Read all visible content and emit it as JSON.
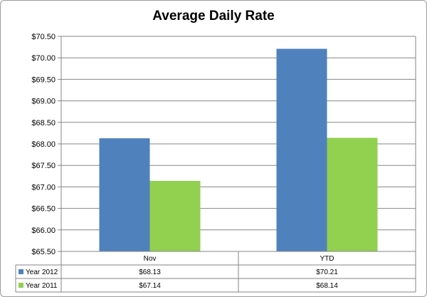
{
  "chart_data": {
    "type": "bar",
    "title": "Average Daily Rate",
    "categories": [
      "Nov",
      "YTD"
    ],
    "series": [
      {
        "name": "Year 2012",
        "color": "#4f81bd",
        "values": [
          68.13,
          70.21
        ],
        "labels": [
          "$68.13",
          "$70.21"
        ]
      },
      {
        "name": "Year 2011",
        "color": "#92d050",
        "values": [
          67.14,
          68.14
        ],
        "labels": [
          "$67.14",
          "$68.14"
        ]
      }
    ],
    "ylim": [
      65.5,
      70.5
    ],
    "yticks": [
      {
        "value": 70.5,
        "label": "$70.50"
      },
      {
        "value": 70.0,
        "label": "$70.00"
      },
      {
        "value": 69.5,
        "label": "$69.50"
      },
      {
        "value": 69.0,
        "label": "$69.00"
      },
      {
        "value": 68.5,
        "label": "$68.50"
      },
      {
        "value": 68.0,
        "label": "$68.00"
      },
      {
        "value": 67.5,
        "label": "$67.50"
      },
      {
        "value": 67.0,
        "label": "$67.00"
      },
      {
        "value": 66.5,
        "label": "$66.50"
      },
      {
        "value": 66.0,
        "label": "$66.00"
      },
      {
        "value": 65.5,
        "label": "$65.50"
      }
    ],
    "grid": true,
    "legend": "data-table-below"
  }
}
